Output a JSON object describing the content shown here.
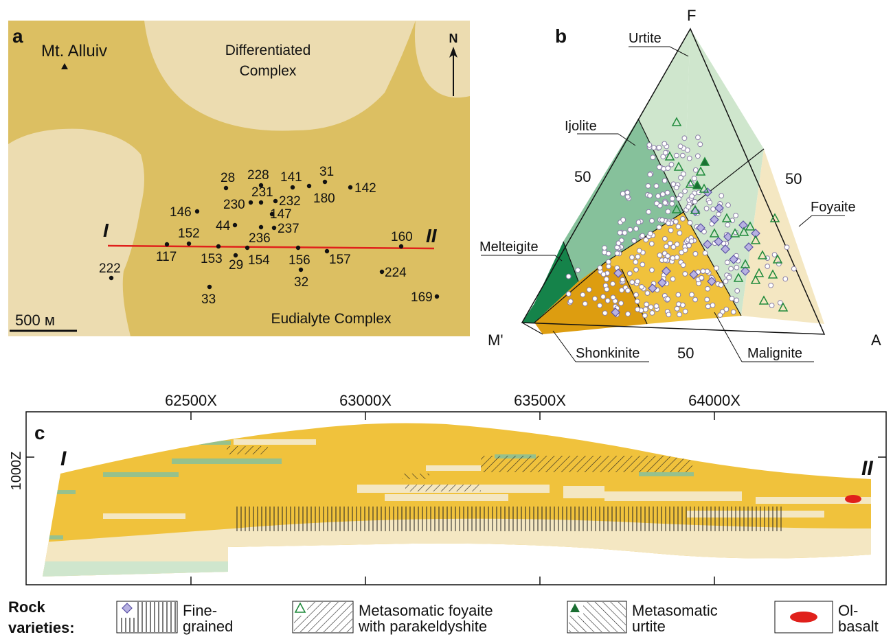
{
  "panel_a": {
    "letter": "a",
    "mount_label": "Mt. Alluiv",
    "differentiated_lines": [
      "Differentiated",
      "Complex"
    ],
    "eudialyte_label": "Eudialyte Complex",
    "north_label": "N",
    "scale_label": "500 м",
    "profile_start": "I",
    "profile_end": "II",
    "points": [
      {
        "id": "28"
      },
      {
        "id": "228"
      },
      {
        "id": "141"
      },
      {
        "id": "31"
      },
      {
        "id": "142"
      },
      {
        "id": "180"
      },
      {
        "id": "230"
      },
      {
        "id": "231"
      },
      {
        "id": "232"
      },
      {
        "id": "147"
      },
      {
        "id": "146"
      },
      {
        "id": "44"
      },
      {
        "id": "237"
      },
      {
        "id": "236"
      },
      {
        "id": "152"
      },
      {
        "id": "117"
      },
      {
        "id": "153"
      },
      {
        "id": "29"
      },
      {
        "id": "154"
      },
      {
        "id": "156"
      },
      {
        "id": "32"
      },
      {
        "id": "157"
      },
      {
        "id": "160"
      },
      {
        "id": "222"
      },
      {
        "id": "224"
      },
      {
        "id": "33"
      },
      {
        "id": "169"
      }
    ],
    "colors": {
      "eudialyte": "#dcbf62",
      "differentiated": "#ecdcb0",
      "profile": "#e0201b"
    }
  },
  "panel_b": {
    "letter": "b",
    "apex_top": "F",
    "apex_left": "M'",
    "apex_right": "A",
    "ticks": {
      "left": "50",
      "right": "50",
      "bottom": "50"
    },
    "fields": [
      {
        "name": "Urtite",
        "color": "#cfe6cd"
      },
      {
        "name": "Ijolite",
        "color": "#86c19b"
      },
      {
        "name": "Melteigite",
        "color": "#15834a"
      },
      {
        "name": "Foyaite",
        "color": "#f4e7c2"
      },
      {
        "name": "Malignite",
        "color": "#f0c23c"
      },
      {
        "name": "Shonkinite",
        "color": "#dd9d10"
      }
    ]
  },
  "panel_c": {
    "letter": "c",
    "x_ticks": [
      "62500X",
      "63000X",
      "63500X",
      "64000X"
    ],
    "y_tick": "1000Z",
    "profile_start": "I",
    "profile_end": "II"
  },
  "legend": {
    "title_lines": [
      "Rock",
      "varieties:"
    ],
    "items": [
      {
        "name": "fine-grained",
        "lines": [
          "Fine-",
          "grained"
        ],
        "marker_color": "#8f88c8"
      },
      {
        "name": "metasomatic-foyaite",
        "lines": [
          "Metasomatic foyaite",
          "with parakeldyshite"
        ],
        "marker_color": "#1f8a3b"
      },
      {
        "name": "metasomatic-urtite",
        "lines": [
          "Metasomatic",
          "urtite"
        ],
        "marker_color": "#1a6e32"
      },
      {
        "name": "ol-basalt",
        "lines": [
          "Ol-",
          "basalt"
        ],
        "marker_color": "#e0201b"
      }
    ]
  }
}
